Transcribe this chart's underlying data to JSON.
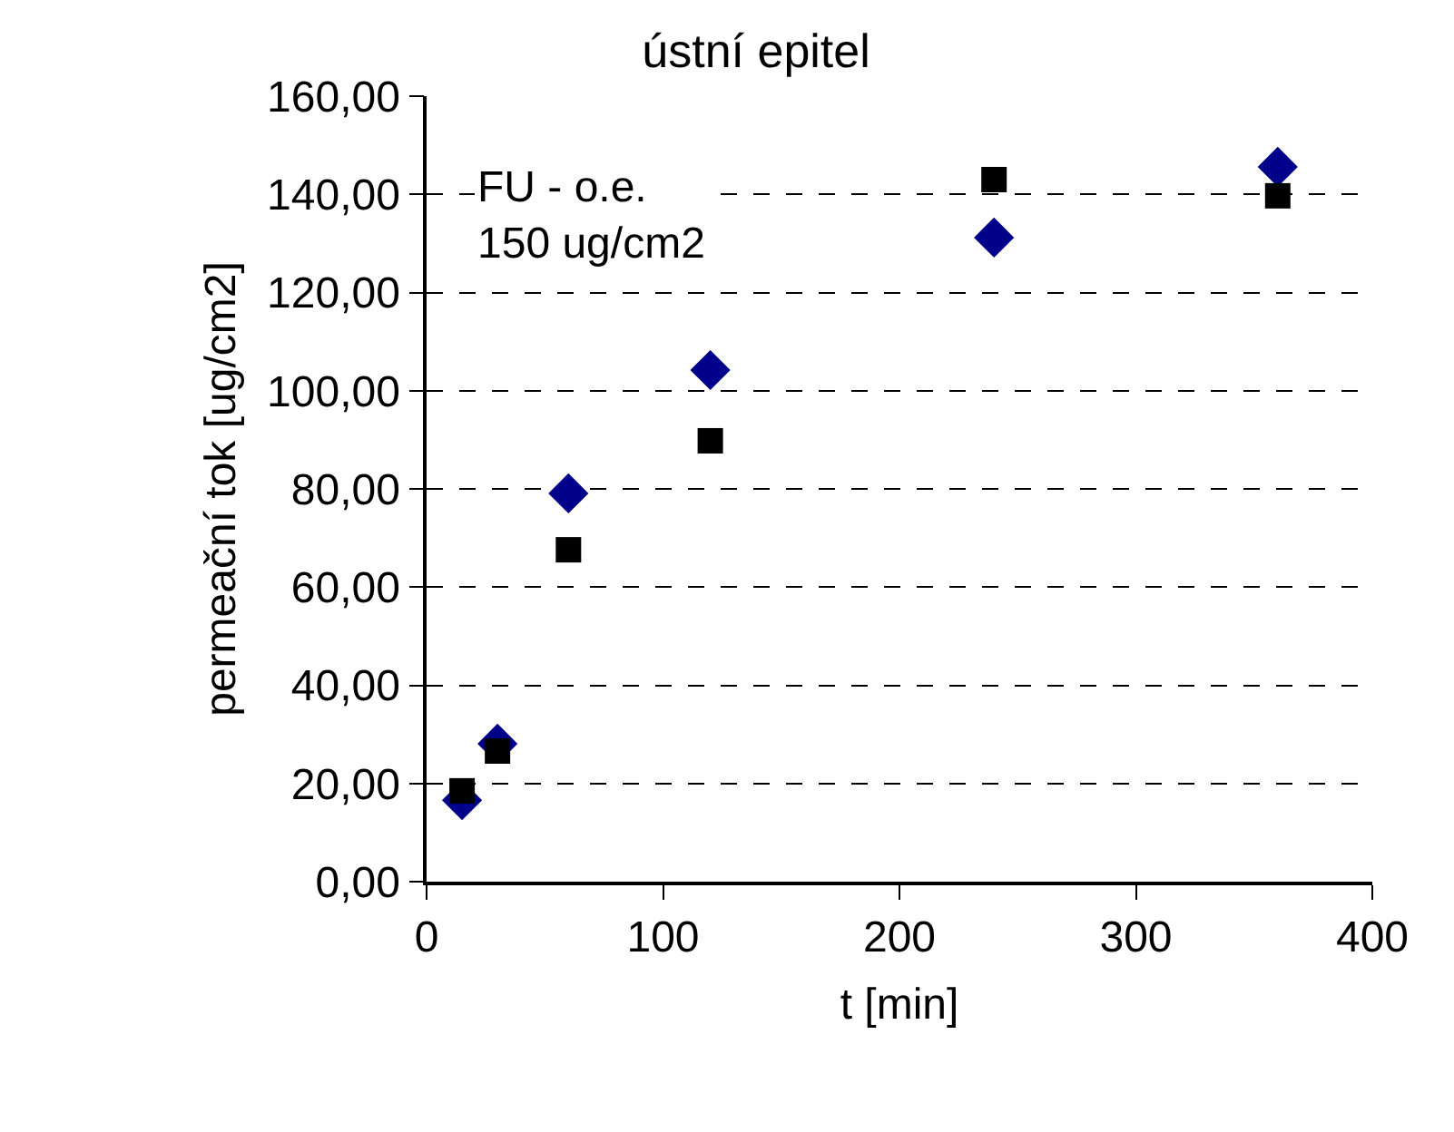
{
  "chart_data": {
    "type": "scatter",
    "title": "ústní epitel",
    "xlabel": "t [min]",
    "ylabel": "permeační tok [ug/cm2]",
    "annotations": [
      "FU - o.e.\n150 ug/cm2"
    ],
    "series": [
      {
        "color": "#00008b",
        "marker": "diamond",
        "x": [
          15,
          30,
          60,
          120,
          240,
          360
        ],
        "values": [
          16.6,
          28.1,
          79.1,
          104.2,
          131.2,
          145.6
        ]
      },
      {
        "color": "#000000",
        "marker": "square",
        "x": [
          15,
          30,
          60,
          120,
          240,
          360
        ],
        "values": [
          18.5,
          26.6,
          67.6,
          89.8,
          143,
          139.7
        ]
      }
    ],
    "xlim": [
      0,
      400
    ],
    "xticks": [
      0,
      100,
      200,
      300,
      400
    ],
    "ylim": [
      0,
      160
    ],
    "yticks": [
      {
        "value": 0,
        "label": "0,00"
      },
      {
        "value": 20,
        "label": "20,00"
      },
      {
        "value": 40,
        "label": "40,00"
      },
      {
        "value": 60,
        "label": "60,00"
      },
      {
        "value": 80,
        "label": "80,00"
      },
      {
        "value": 100,
        "label": "100,00"
      },
      {
        "value": 120,
        "label": "120,00"
      },
      {
        "value": 140,
        "label": "140,00"
      },
      {
        "value": 160,
        "label": "160,00"
      }
    ],
    "grid": "y"
  }
}
